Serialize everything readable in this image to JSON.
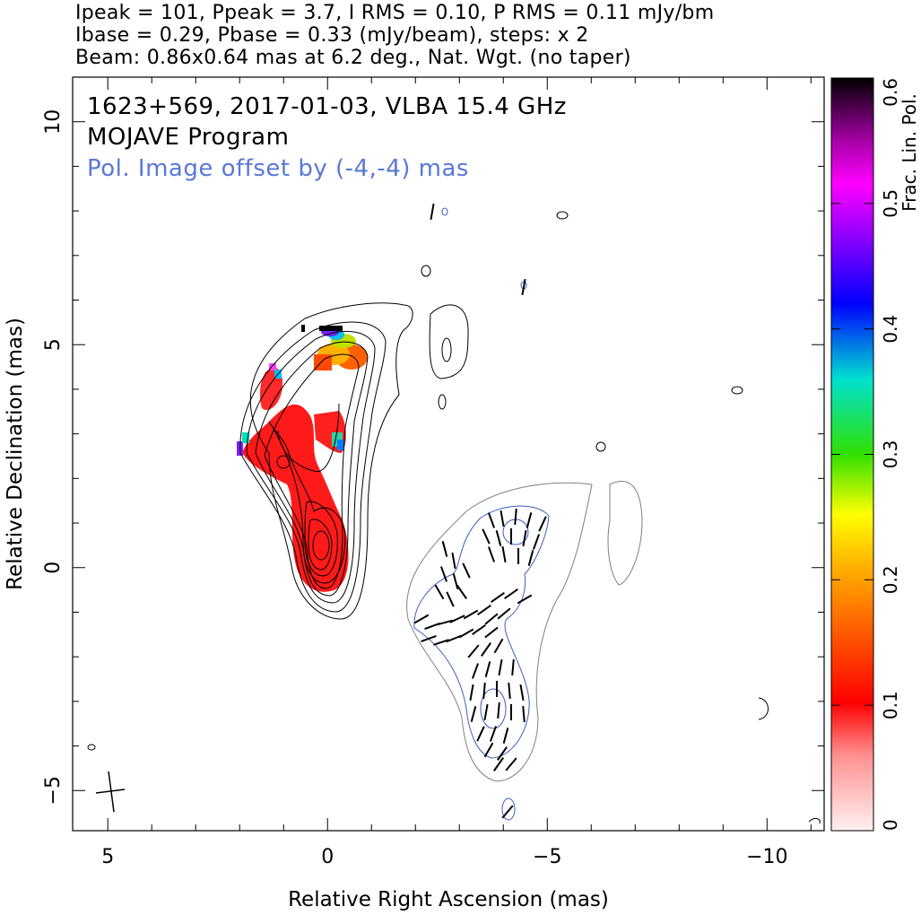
{
  "header": {
    "line1": "Ipeak = 101, Ppeak = 3.7, I RMS = 0.10, P RMS = 0.11 mJy/bm",
    "line2": "Ibase = 0.29, Pbase = 0.33 (mJy/beam), steps: x 2",
    "line3": "Beam: 0.86x0.64 mas at 6.2 deg., Nat. Wgt. (no taper)"
  },
  "annotations": {
    "source": "1623+569, 2017-01-03, VLBA 15.4 GHz",
    "program": "MOJAVE Program",
    "offset_note": "Pol. Image offset by (-4,-4) mas"
  },
  "colors": {
    "offset_note": "#5a78d6",
    "total_intensity_contours": "#000000",
    "pol_contours_inner": "#3c5fbd",
    "pol_contours_outer": "#808080",
    "evpa_ticks": "#000000"
  },
  "chart_data": {
    "type": "heatmap",
    "title": "1623+569, 2017-01-03, VLBA 15.4 GHz",
    "xlabel": "Relative Right Ascension (mas)",
    "ylabel": "Relative Declination (mas)",
    "xlim": [
      5.8,
      -11.3
    ],
    "ylim": [
      -5.9,
      11.0
    ],
    "x_ticks": [
      5,
      0,
      -5,
      -10
    ],
    "x_tick_labels": [
      "5",
      "0",
      "−5",
      "−10"
    ],
    "y_ticks": [
      -5,
      0,
      5,
      10
    ],
    "y_tick_labels": [
      "−5",
      "0",
      "5",
      "10"
    ],
    "colorbar": {
      "label": "Frac. Lin. Pol.",
      "range": [
        0,
        0.6
      ],
      "ticks": [
        0,
        0.1,
        0.2,
        0.3,
        0.4,
        0.5,
        0.6
      ],
      "tick_labels": [
        "0",
        "0.1",
        "0.2",
        "0.3",
        "0.4",
        "0.5",
        "0.6"
      ]
    },
    "peak_intensity_mJy_per_beam": 101,
    "peak_polarized_mJy_per_beam": 3.7,
    "contour_base_I_mJy_per_beam": 0.29,
    "contour_base_P_mJy_per_beam": 0.33,
    "contour_step_factor": 2,
    "beam": {
      "major_mas": 0.86,
      "minor_mas": 0.64,
      "pa_deg": 6.2
    },
    "pol_offset_mas": [
      -4,
      -4
    ],
    "grid": false
  }
}
